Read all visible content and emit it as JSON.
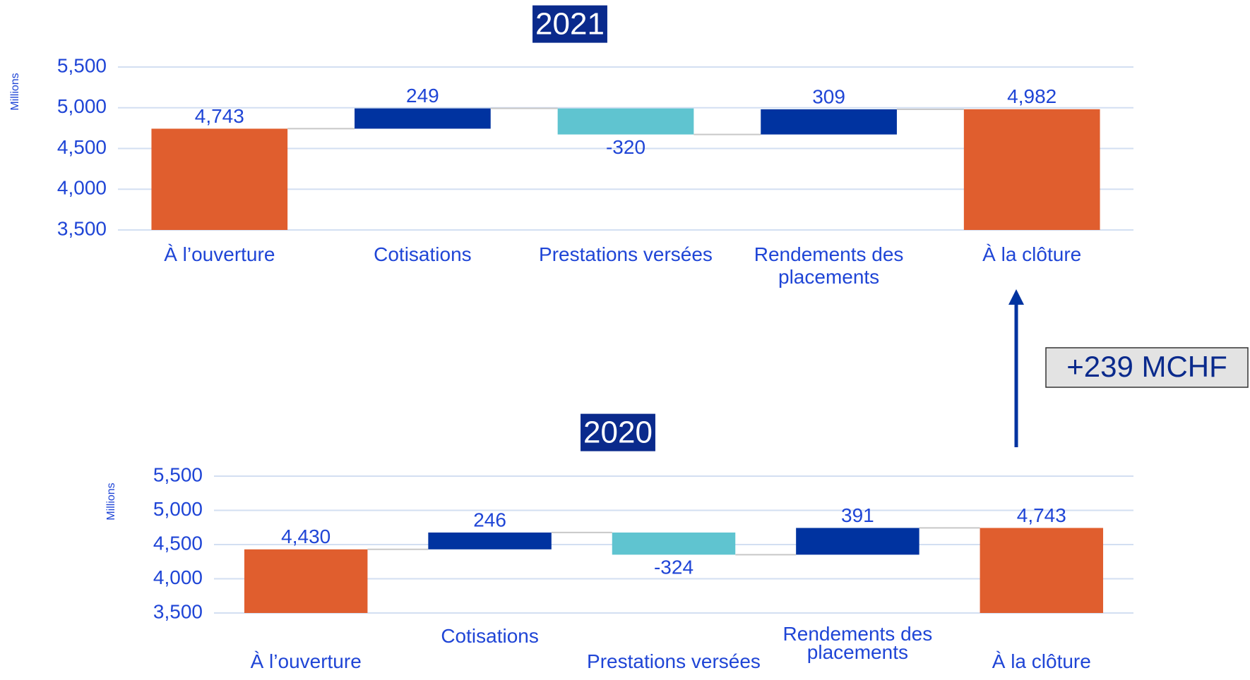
{
  "chart_data": [
    {
      "type": "waterfall",
      "title": "2021",
      "y_label": "Millions",
      "categories": [
        "À l’ouverture",
        "Cotisations",
        "Prestations versées",
        "Rendements des placements",
        "À la clôture"
      ],
      "values": [
        4743,
        249,
        -320,
        309,
        4982
      ],
      "value_labels": [
        "4,743",
        "249",
        "-320",
        "309",
        "4,982"
      ],
      "totals": [
        true,
        false,
        false,
        false,
        true
      ],
      "colors": {
        "total": "#e05e2e",
        "increase": "#0033a0",
        "decrease": "#5fc4d0"
      },
      "ylim": [
        3500,
        5500
      ],
      "yticks": [
        {
          "value": 3500,
          "label": "3,500"
        },
        {
          "value": 4000,
          "label": "4,000"
        },
        {
          "value": 4500,
          "label": "4,500"
        },
        {
          "value": 5000,
          "label": "5,000"
        },
        {
          "value": 5500,
          "label": "5,500"
        }
      ],
      "grid": true
    },
    {
      "type": "waterfall",
      "title": "2020",
      "y_label": "Millions",
      "categories": [
        "À l’ouverture",
        "Cotisations",
        "Prestations versées",
        "Rendements des placements",
        "À la clôture"
      ],
      "values": [
        4430,
        246,
        -324,
        391,
        4743
      ],
      "value_labels": [
        "4,430",
        "246",
        "-324",
        "391",
        "4,743"
      ],
      "totals": [
        true,
        false,
        false,
        false,
        true
      ],
      "colors": {
        "total": "#e05e2e",
        "increase": "#0033a0",
        "decrease": "#5fc4d0"
      },
      "ylim": [
        3500,
        5500
      ],
      "yticks": [
        {
          "value": 3500,
          "label": "3,500"
        },
        {
          "value": 4000,
          "label": "4,000"
        },
        {
          "value": 4500,
          "label": "4,500"
        },
        {
          "value": 5000,
          "label": "5,000"
        },
        {
          "value": 5500,
          "label": "5,500"
        }
      ],
      "grid": true
    }
  ],
  "annotation": "+239 MCHF"
}
